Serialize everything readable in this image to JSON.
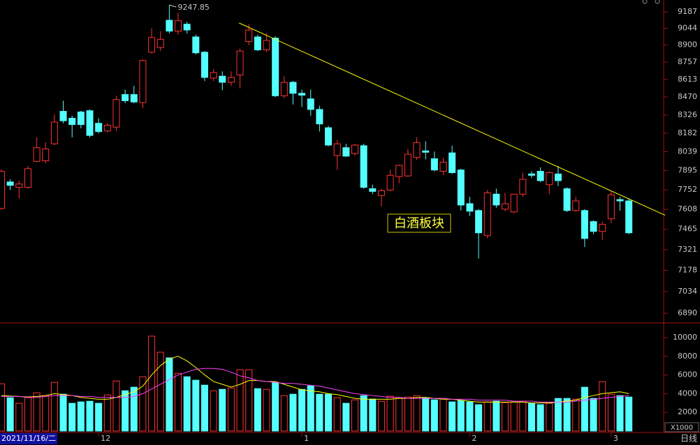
{
  "chart_data": {
    "type": "candlestick",
    "log": true,
    "up_color": "#ff3232",
    "down_color": "#54ffff",
    "ylim": [
      6831,
      9292
    ],
    "yticks": [
      9187,
      9044,
      8900,
      8757,
      8613,
      8470,
      8326,
      8182,
      8039,
      7895,
      7752,
      7608,
      7465,
      7321,
      7178,
      7034,
      6890
    ],
    "open": [
      7615,
      7810,
      7770,
      7770,
      7965,
      7970,
      8100,
      8355,
      8300,
      8350,
      8360,
      8260,
      8200,
      8230,
      8490,
      8490,
      8425,
      8840,
      8880,
      9114,
      9020,
      9080,
      8970,
      8840,
      8625,
      8640,
      8590,
      8650,
      8930,
      8970,
      8860,
      8960,
      8480,
      8590,
      8500,
      8455,
      8370,
      8225,
      8010,
      8070,
      8025,
      8085,
      7760,
      7710,
      7750,
      7850,
      7855,
      7995,
      8045,
      7985,
      7890,
      8030,
      7900,
      7650,
      7600,
      7420,
      7720,
      7610,
      7590,
      7720,
      7870,
      7890,
      7790,
      7870,
      7760,
      7600,
      7600,
      7520,
      7450,
      7540,
      7680,
      7670
    ],
    "high": [
      7905,
      7830,
      7820,
      7930,
      8150,
      8110,
      8330,
      8440,
      8320,
      8360,
      8370,
      8300,
      8260,
      8480,
      8530,
      8560,
      8780,
      9044,
      9020,
      9247.85,
      9180,
      9100,
      8990,
      8850,
      8700,
      8680,
      8680,
      8870,
      9080,
      8990,
      9000,
      8975,
      8640,
      8600,
      8530,
      8530,
      8400,
      8240,
      8130,
      8100,
      8100,
      8100,
      7790,
      7760,
      7900,
      7940,
      8060,
      8150,
      8120,
      8040,
      7990,
      8085,
      7910,
      7700,
      7610,
      7750,
      7760,
      7730,
      7720,
      7880,
      7890,
      7920,
      7890,
      7930,
      7770,
      7700,
      7610,
      7530,
      7520,
      7740,
      7700,
      7690
    ],
    "low": [
      7605,
      7750,
      7690,
      7760,
      7960,
      7950,
      8090,
      8260,
      8150,
      8220,
      8150,
      8180,
      8190,
      8200,
      8420,
      8420,
      8380,
      8830,
      8850,
      9000,
      8990,
      9000,
      8820,
      8600,
      8600,
      8525,
      8560,
      8540,
      8900,
      8850,
      8840,
      8470,
      8460,
      8410,
      8390,
      8320,
      8195,
      8080,
      7900,
      8000,
      8010,
      7760,
      7720,
      7630,
      7740,
      7800,
      7850,
      7975,
      7980,
      7890,
      7860,
      7870,
      7600,
      7560,
      7260,
      7400,
      7620,
      7595,
      7580,
      7700,
      7840,
      7810,
      7720,
      7780,
      7590,
      7590,
      7340,
      7430,
      7390,
      7510,
      7600,
      7430
    ],
    "close": [
      7890,
      7785,
      7795,
      7910,
      8070,
      8060,
      8270,
      8280,
      8250,
      8250,
      8165,
      8195,
      8245,
      8450,
      8440,
      8430,
      8770,
      8965,
      8950,
      9020,
      9110,
      9030,
      8835,
      8630,
      8670,
      8590,
      8630,
      8850,
      9030,
      8860,
      8940,
      8480,
      8590,
      8500,
      8485,
      8370,
      8255,
      8090,
      8100,
      8005,
      8090,
      7770,
      7740,
      7745,
      7860,
      7935,
      8020,
      8110,
      8035,
      7900,
      7960,
      7880,
      7640,
      7595,
      7440,
      7730,
      7640,
      7650,
      7720,
      7830,
      7860,
      7820,
      7880,
      7820,
      7600,
      7670,
      7400,
      7450,
      7500,
      7715,
      7670,
      7440
    ],
    "max_label_index": 19,
    "trendline": {
      "x": [
        26.9,
        75.1
      ],
      "values": [
        9090,
        7566
      ],
      "color": "#ffff00"
    },
    "annotation": "白酒板块",
    "cursor_date": "2021/11/16/二",
    "period_label": "日线",
    "month_ticks": [
      {
        "value": 11,
        "label": "12"
      },
      {
        "value": 34,
        "label": "1"
      },
      {
        "value": 53,
        "label": "2"
      },
      {
        "value": 69,
        "label": "3"
      }
    ],
    "volume": {
      "unit_label": "X1000",
      "ylim": [
        0,
        11340
      ],
      "yticks": [
        2000,
        4000,
        6000,
        8000,
        10000
      ],
      "values": [
        5060,
        3570,
        2970,
        3570,
        4090,
        3790,
        5210,
        3940,
        2970,
        3120,
        3190,
        2970,
        3870,
        5360,
        4310,
        4690,
        5810,
        10150,
        8430,
        7830,
        6180,
        5810,
        5440,
        4910,
        4310,
        4460,
        4610,
        6560,
        6560,
        4540,
        4460,
        5210,
        3790,
        3940,
        4460,
        4840,
        3940,
        3940,
        3570,
        2970,
        3340,
        3790,
        3420,
        3190,
        3720,
        3570,
        3640,
        3790,
        3570,
        3340,
        3490,
        3120,
        3270,
        3120,
        2820,
        3120,
        3190,
        3040,
        3120,
        3190,
        2970,
        2820,
        2970,
        3490,
        3490,
        3420,
        4690,
        3490,
        5280,
        3940,
        3790,
        3640
      ],
      "ma": [
        {
          "color": "#ffff00",
          "values": [
            3800,
            3750,
            3700,
            3650,
            3700,
            3800,
            4000,
            3900,
            3800,
            3600,
            3500,
            3400,
            3400,
            3600,
            3900,
            4200,
            4800,
            6000,
            7000,
            7700,
            8000,
            7500,
            6800,
            6000,
            5300,
            5000,
            4700,
            5000,
            5400,
            5400,
            5300,
            5300,
            5000,
            4700,
            4400,
            4300,
            4200,
            4000,
            3900,
            3700,
            3500,
            3400,
            3400,
            3400,
            3400,
            3500,
            3500,
            3600,
            3600,
            3500,
            3400,
            3400,
            3300,
            3200,
            3100,
            3100,
            3100,
            3100,
            3100,
            3100,
            3000,
            3000,
            3000,
            3100,
            3200,
            3300,
            3600,
            3800,
            4000,
            4100,
            4200,
            4000
          ]
        },
        {
          "color": "#ff40ff",
          "values": [
            3700,
            3700,
            3700,
            3600,
            3600,
            3700,
            3800,
            3800,
            3800,
            3700,
            3700,
            3600,
            3600,
            3600,
            3600,
            3700,
            4000,
            4500,
            5000,
            5500,
            6000,
            6300,
            6600,
            6700,
            6700,
            6600,
            6300,
            5900,
            5700,
            5400,
            5300,
            5200,
            5100,
            5100,
            5000,
            4900,
            4800,
            4600,
            4400,
            4200,
            4000,
            3900,
            3800,
            3700,
            3600,
            3600,
            3500,
            3500,
            3500,
            3500,
            3500,
            3400,
            3400,
            3400,
            3300,
            3300,
            3300,
            3300,
            3200,
            3200,
            3200,
            3100,
            3100,
            3100,
            3100,
            3200,
            3300,
            3400,
            3500,
            3600,
            3700,
            3800
          ]
        }
      ]
    }
  }
}
